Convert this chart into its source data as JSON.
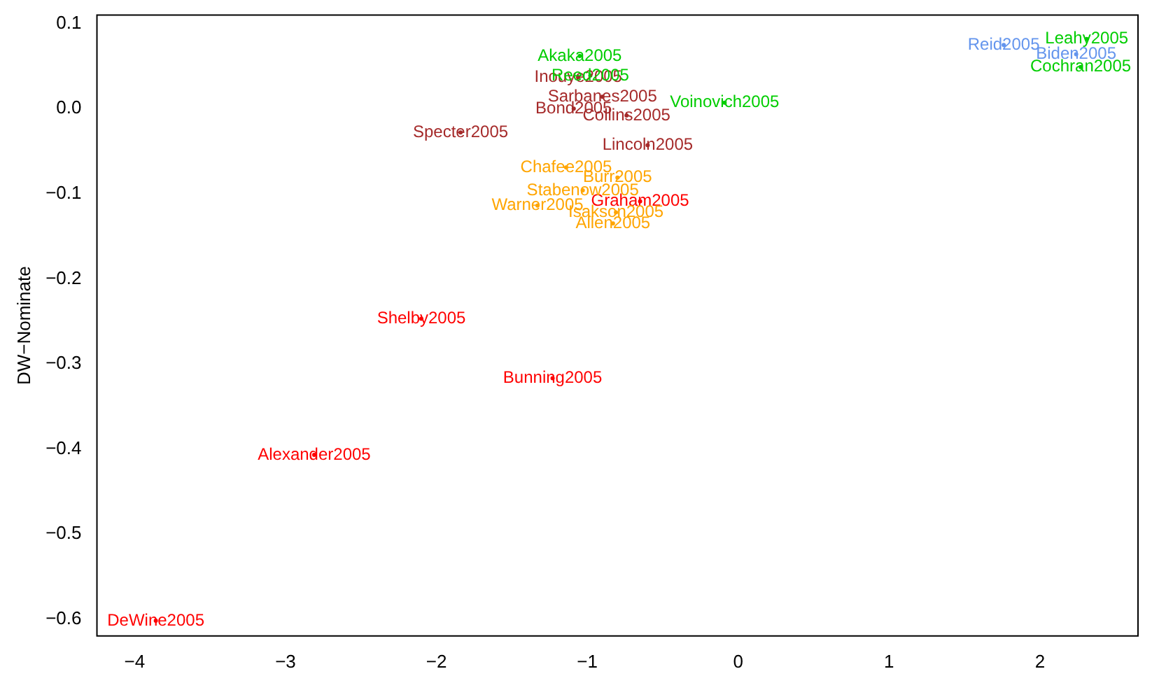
{
  "chart_data": {
    "type": "scatter",
    "ylabel": "DW−Nominate",
    "marker": "circle",
    "grid": false,
    "legend": false,
    "xlim": [
      -4.25,
      2.65
    ],
    "ylim": [
      -0.62,
      0.11
    ],
    "xticks": [
      {
        "value": -4,
        "label": "−4"
      },
      {
        "value": -3,
        "label": "−3"
      },
      {
        "value": -2,
        "label": "−2"
      },
      {
        "value": -1,
        "label": "−1"
      },
      0,
      1,
      2
    ],
    "yticks": [
      {
        "value": -0.6,
        "label": "−0.6"
      },
      {
        "value": -0.5,
        "label": "−0.5"
      },
      {
        "value": -0.4,
        "label": "−0.4"
      },
      {
        "value": -0.3,
        "label": "−0.3"
      },
      {
        "value": -0.2,
        "label": "−0.2"
      },
      {
        "value": -0.1,
        "label": "−0.1"
      },
      {
        "value": 0,
        "label": "0.0"
      },
      0.1
    ],
    "series": [
      {
        "color": "#ff0000",
        "x": [
          -3.86,
          -2.1,
          -1.23,
          -2.81,
          -0.65
        ],
        "values": [
          -0.602,
          -0.247,
          -0.317,
          -0.407,
          -0.109
        ],
        "value_labels": [
          "DeWine2005",
          "Shelby2005",
          "Bunning2005",
          "Alexander2005",
          "Graham2005"
        ]
      },
      {
        "color": "#a52a2a",
        "x": [
          -1.06,
          -1.84,
          -1.09,
          -0.6,
          -0.9,
          -0.74
        ],
        "values": [
          0.037,
          -0.028,
          0.0,
          -0.043,
          0.014,
          -0.008
        ],
        "value_labels": [
          "Inouye2005",
          "Specter2005",
          "Bond2005",
          "Lincoln2005",
          "Sarbanes2005",
          "Collins2005"
        ]
      },
      {
        "color": "#ffa500",
        "x": [
          -1.14,
          -0.8,
          -1.03,
          -1.33,
          -0.81,
          -0.83
        ],
        "values": [
          -0.069,
          -0.081,
          -0.096,
          -0.114,
          -0.122,
          -0.135
        ],
        "value_labels": [
          "Chafee2005",
          "Burr2005",
          "Stabenow2005",
          "Warner2005",
          "Isakson2005",
          "Allen2005"
        ]
      },
      {
        "color": "#00cd00",
        "x": [
          -1.05,
          2.31,
          2.27,
          -0.98,
          -0.09
        ],
        "values": [
          0.062,
          0.082,
          0.049,
          0.039,
          0.007
        ],
        "value_labels": [
          "Akaka2005",
          "Leahy2005",
          "Cochran2005",
          "Reed2005",
          "Voinovich2005"
        ]
      },
      {
        "color": "#6495ed",
        "x": [
          1.76,
          2.24
        ],
        "values": [
          0.075,
          0.064
        ],
        "value_labels": [
          "Reid2005",
          "Biden2005"
        ]
      }
    ]
  }
}
